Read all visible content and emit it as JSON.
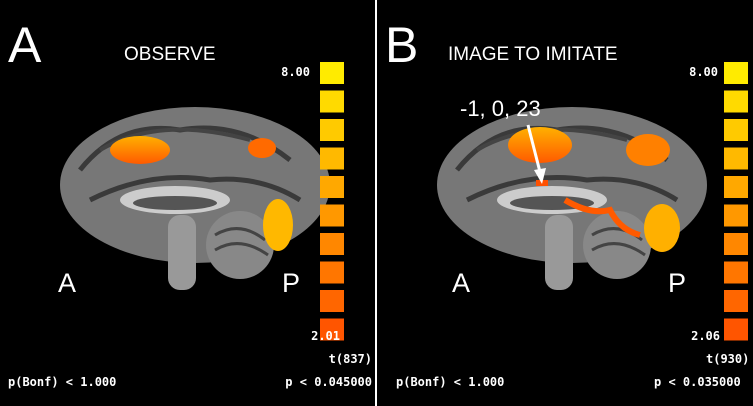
{
  "panels": [
    {
      "letter": "A",
      "title": "OBSERVE",
      "scale_max": "8.00",
      "scale_min": "2.01",
      "stat": "t(837)",
      "p_bonf": "p(Bonf) < 1.000",
      "p": "p < 0.045000",
      "anterior": "A",
      "posterior": "P"
    },
    {
      "letter": "B",
      "title": "IMAGE TO IMITATE",
      "scale_max": "8.00",
      "scale_min": "2.06",
      "stat": "t(930)",
      "p_bonf": "p(Bonf) < 1.000",
      "p": "p < 0.035000",
      "anterior": "A",
      "posterior": "P",
      "annotation": "-1, 0, 23"
    }
  ]
}
